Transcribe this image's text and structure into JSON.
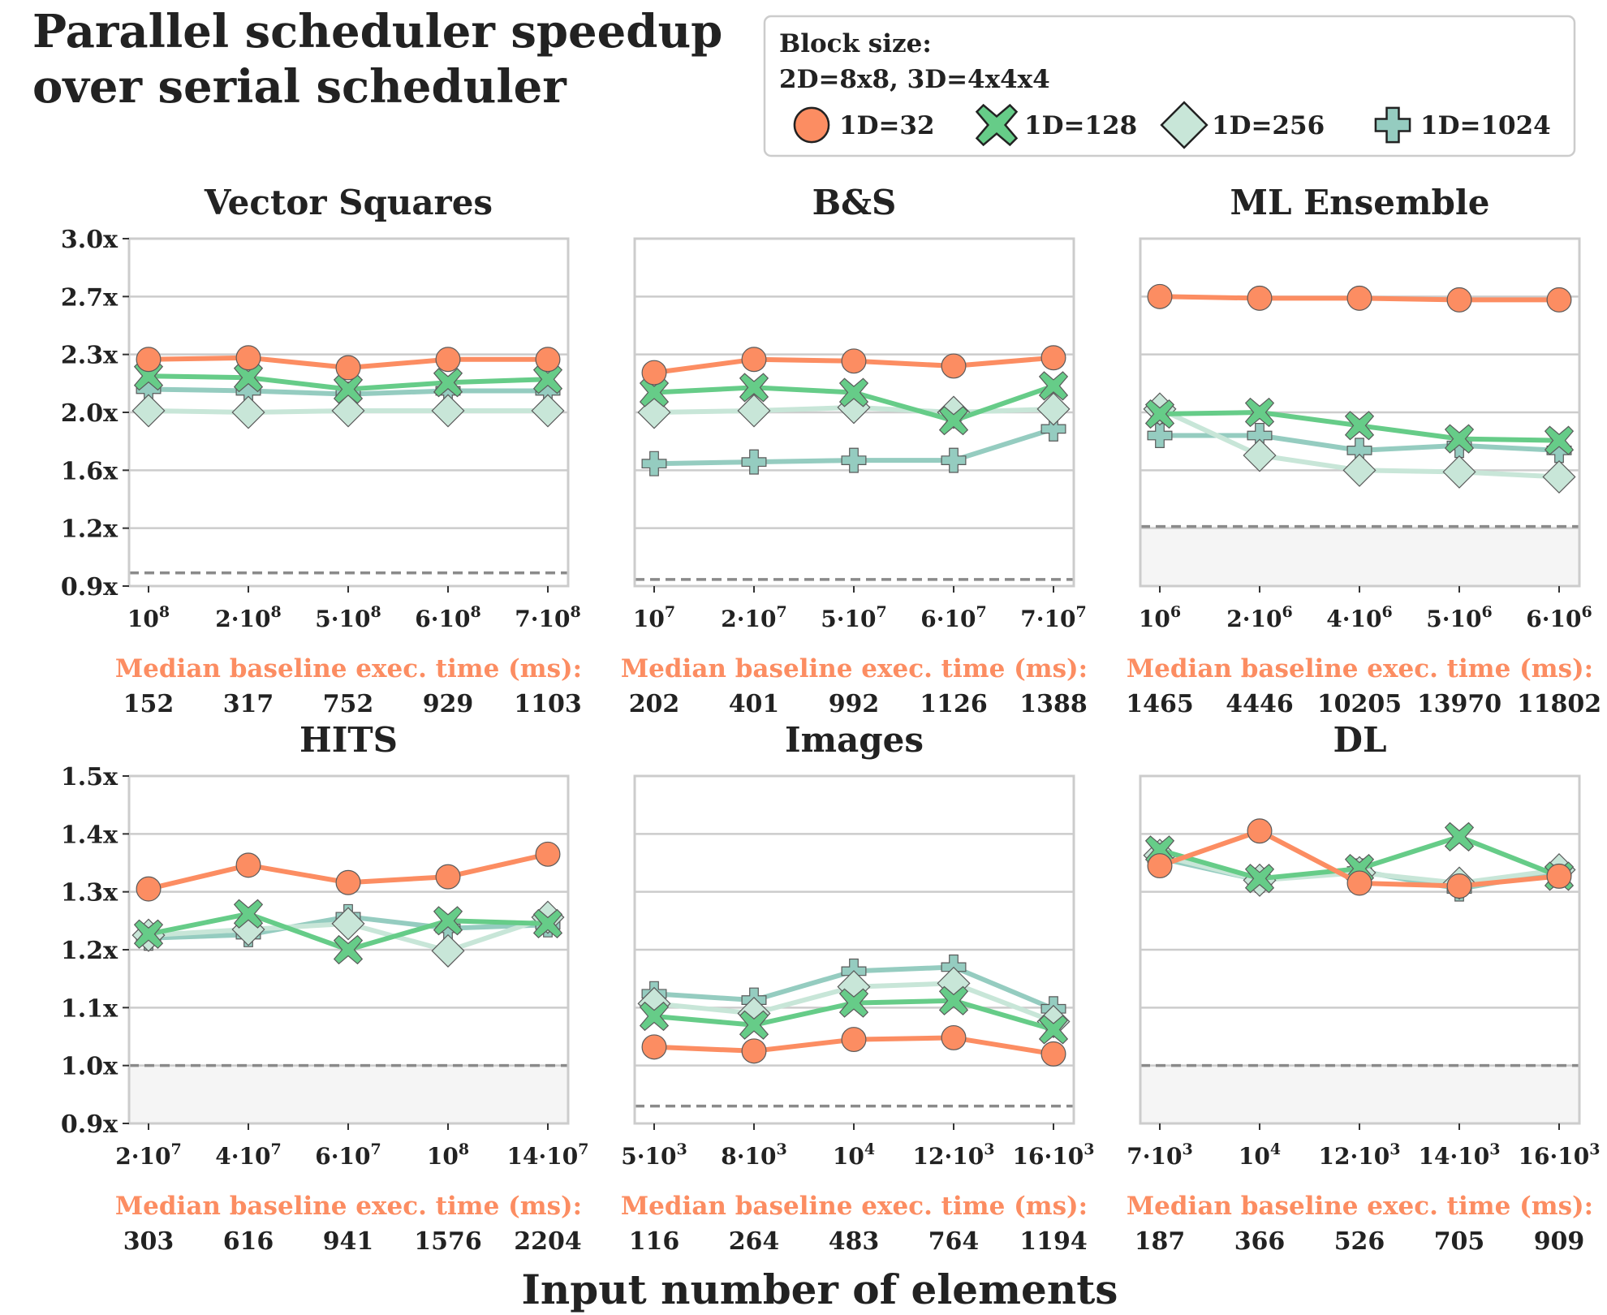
{
  "figure": {
    "title_lines": [
      "Parallel scheduler speedup",
      "over serial scheduler"
    ],
    "xlabel": "Input number of elements",
    "baseline_label": "Median baseline exec. time (ms):"
  },
  "legend": {
    "title_lines": [
      "Block size:",
      "2D=8x8, 3D=4x4x4"
    ],
    "entries": [
      {
        "label": "1D=32",
        "marker": "circle",
        "color": "#FC8D62"
      },
      {
        "label": "1D=128",
        "marker": "x",
        "color": "#66CC88"
      },
      {
        "label": "1D=256",
        "marker": "diamond",
        "color": "#C8E6D8"
      },
      {
        "label": "1D=1024",
        "marker": "plus",
        "color": "#95CCC0"
      }
    ]
  },
  "chart_data": [
    {
      "type": "line",
      "title": "Vector Squares",
      "categories": [
        "10^8",
        "2·10^8",
        "5·10^8",
        "6·10^8",
        "7·10^8"
      ],
      "yticks": [
        "0.9x",
        "1.2x",
        "1.6x",
        "2.0x",
        "2.3x",
        "2.7x",
        "3.0x"
      ],
      "ylim": [
        0.9,
        3.0
      ],
      "reference_line": 0.98,
      "series": [
        {
          "name": "1D=32",
          "values": [
            2.27,
            2.28,
            2.22,
            2.27,
            2.27
          ]
        },
        {
          "name": "1D=128",
          "values": [
            2.17,
            2.16,
            2.09,
            2.13,
            2.15
          ]
        },
        {
          "name": "1D=256",
          "values": [
            1.96,
            1.95,
            1.96,
            1.96,
            1.96
          ]
        },
        {
          "name": "1D=1024",
          "values": [
            2.09,
            2.08,
            2.06,
            2.08,
            2.08
          ]
        }
      ],
      "baseline_ms": [
        "152",
        "317",
        "752",
        "929",
        "1103"
      ]
    },
    {
      "type": "line",
      "title": "B&S",
      "categories": [
        "10^7",
        "2·10^7",
        "5·10^7",
        "6·10^7",
        "7·10^7"
      ],
      "yticks": [],
      "ylim": [
        0.9,
        3.0
      ],
      "reference_line": 0.94,
      "series": [
        {
          "name": "1D=32",
          "values": [
            2.19,
            2.27,
            2.26,
            2.23,
            2.28
          ]
        },
        {
          "name": "1D=128",
          "values": [
            2.07,
            2.1,
            2.07,
            1.9,
            2.11
          ]
        },
        {
          "name": "1D=256",
          "values": [
            1.95,
            1.96,
            1.98,
            1.95,
            1.97
          ]
        },
        {
          "name": "1D=1024",
          "values": [
            1.64,
            1.65,
            1.66,
            1.66,
            1.85
          ]
        }
      ],
      "baseline_ms": [
        "202",
        "401",
        "992",
        "1126",
        "1388"
      ]
    },
    {
      "type": "line",
      "title": "ML Ensemble",
      "categories": [
        "10^6",
        "2·10^6",
        "4·10^6",
        "5·10^6",
        "6·10^6"
      ],
      "yticks": [],
      "ylim": [
        0.9,
        3.0
      ],
      "reference_line": 1.26,
      "shade_below_reference": true,
      "series": [
        {
          "name": "1D=32",
          "values": [
            2.65,
            2.64,
            2.64,
            2.63,
            2.63
          ]
        },
        {
          "name": "1D=128",
          "values": [
            1.94,
            1.95,
            1.87,
            1.79,
            1.78
          ]
        },
        {
          "name": "1D=256",
          "values": [
            1.97,
            1.69,
            1.6,
            1.59,
            1.56
          ]
        },
        {
          "name": "1D=1024",
          "values": [
            1.81,
            1.81,
            1.72,
            1.75,
            1.72
          ]
        }
      ],
      "baseline_ms": [
        "1465",
        "4446",
        "10205",
        "13970",
        "11802"
      ]
    },
    {
      "type": "line",
      "title": "HITS",
      "categories": [
        "2·10^7",
        "4·10^7",
        "6·10^7",
        "10^8",
        "14·10^7"
      ],
      "yticks": [
        "0.9x",
        "1.0x",
        "1.1x",
        "1.2x",
        "1.3x",
        "1.4x",
        "1.5x"
      ],
      "ylim": [
        0.9,
        1.5
      ],
      "reference_line": 1.0,
      "shade_below_reference": true,
      "series": [
        {
          "name": "1D=32",
          "values": [
            1.305,
            1.346,
            1.316,
            1.326,
            1.365
          ]
        },
        {
          "name": "1D=128",
          "values": [
            1.227,
            1.262,
            1.2,
            1.25,
            1.245
          ]
        },
        {
          "name": "1D=256",
          "values": [
            1.225,
            1.235,
            1.245,
            1.198,
            1.256
          ]
        },
        {
          "name": "1D=1024",
          "values": [
            1.22,
            1.226,
            1.257,
            1.237,
            1.243
          ]
        }
      ],
      "baseline_ms": [
        "303",
        "616",
        "941",
        "1576",
        "2204"
      ]
    },
    {
      "type": "line",
      "title": "Images",
      "categories": [
        "5·10^3",
        "8·10^3",
        "10^4",
        "12·10^3",
        "16·10^3"
      ],
      "yticks": [],
      "ylim": [
        0.9,
        1.5
      ],
      "reference_line": 0.93,
      "series": [
        {
          "name": "1D=32",
          "values": [
            1.032,
            1.025,
            1.045,
            1.048,
            1.02
          ]
        },
        {
          "name": "1D=128",
          "values": [
            1.085,
            1.07,
            1.108,
            1.112,
            1.062
          ]
        },
        {
          "name": "1D=256",
          "values": [
            1.107,
            1.09,
            1.136,
            1.142,
            1.076
          ]
        },
        {
          "name": "1D=1024",
          "values": [
            1.124,
            1.113,
            1.163,
            1.17,
            1.098
          ]
        }
      ],
      "baseline_ms": [
        "116",
        "264",
        "483",
        "764",
        "1194"
      ]
    },
    {
      "type": "line",
      "title": "DL",
      "categories": [
        "7·10^3",
        "10^4",
        "12·10^3",
        "14·10^3",
        "16·10^3"
      ],
      "yticks": [],
      "ylim": [
        0.9,
        1.5
      ],
      "reference_line": 1.0,
      "shade_below_reference": true,
      "series": [
        {
          "name": "1D=32",
          "values": [
            1.345,
            1.405,
            1.315,
            1.31,
            1.327
          ]
        },
        {
          "name": "1D=128",
          "values": [
            1.372,
            1.323,
            1.34,
            1.395,
            1.327
          ]
        },
        {
          "name": "1D=256",
          "values": [
            1.363,
            1.32,
            1.333,
            1.315,
            1.338
          ]
        },
        {
          "name": "1D=1024",
          "values": [
            1.358,
            1.32,
            1.336,
            1.305,
            1.335
          ]
        }
      ],
      "baseline_ms": [
        "187",
        "366",
        "526",
        "705",
        "909"
      ]
    }
  ]
}
